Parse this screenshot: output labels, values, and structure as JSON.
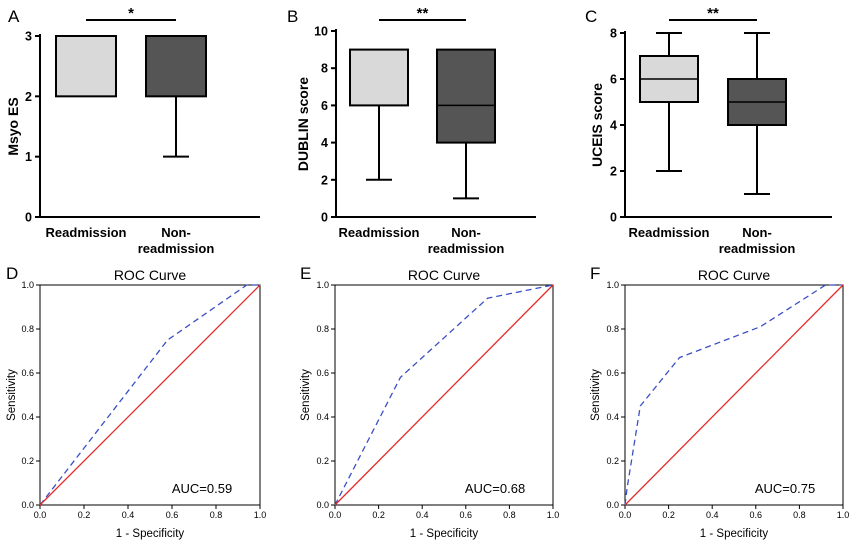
{
  "chart_data": [
    {
      "panel": "A",
      "type": "box",
      "ylabel": "Msyo ES",
      "ylim": [
        0,
        3
      ],
      "yticks": [
        "0",
        "1",
        "2",
        "3"
      ],
      "categories": [
        "Readmission",
        "Non-readmission"
      ],
      "category_lines": [
        [
          "Readmission"
        ],
        [
          "Non-",
          "readmission"
        ]
      ],
      "boxes": [
        {
          "min": 2,
          "q1": 2,
          "median": 3,
          "q3": 3,
          "max": 3,
          "fill": "#d9d9d9"
        },
        {
          "min": 1,
          "q1": 2,
          "median": 3,
          "q3": 3,
          "max": 3,
          "fill": "#555555"
        }
      ],
      "significance": "*"
    },
    {
      "panel": "B",
      "type": "box",
      "ylabel": "DUBLIN score",
      "ylim": [
        0,
        10
      ],
      "yticks": [
        "0",
        "2",
        "4",
        "6",
        "8",
        "10"
      ],
      "categories": [
        "Readmission",
        "Non-readmission"
      ],
      "category_lines": [
        [
          "Readmission"
        ],
        [
          "Non-",
          "readmission"
        ]
      ],
      "boxes": [
        {
          "min": 2,
          "q1": 6,
          "median": 9,
          "q3": 9,
          "max": 9,
          "fill": "#d9d9d9"
        },
        {
          "min": 1,
          "q1": 4,
          "median": 6,
          "q3": 9,
          "max": 9,
          "fill": "#555555"
        }
      ],
      "significance": "**"
    },
    {
      "panel": "C",
      "type": "box",
      "ylabel": "UCEIS score",
      "ylim": [
        0,
        8
      ],
      "yticks": [
        "0",
        "2",
        "4",
        "6",
        "8"
      ],
      "categories": [
        "Readmission",
        "Non-readmission"
      ],
      "category_lines": [
        [
          "Readmission"
        ],
        [
          "Non-",
          "readmission"
        ]
      ],
      "boxes": [
        {
          "min": 2,
          "q1": 5,
          "median": 6,
          "q3": 7,
          "max": 8,
          "fill": "#d9d9d9"
        },
        {
          "min": 1,
          "q1": 4,
          "median": 5,
          "q3": 6,
          "max": 8,
          "fill": "#555555"
        }
      ],
      "significance": "**"
    },
    {
      "panel": "D",
      "type": "line",
      "title": "ROC Curve",
      "xlabel": "1 - Specificity",
      "ylabel": "Sensitivity",
      "xlim": [
        0,
        1
      ],
      "ylim": [
        0,
        1
      ],
      "ticks": [
        "0.0",
        "0.2",
        "0.4",
        "0.6",
        "0.8",
        "1.0"
      ],
      "series": [
        {
          "style": "dashed",
          "color": "#3b4fc4",
          "x": [
            0,
            0.58,
            0.94,
            1.0
          ],
          "y": [
            0,
            0.75,
            1.0,
            1.0
          ]
        },
        {
          "style": "solid",
          "color": "#e52b2b",
          "x": [
            0,
            1
          ],
          "y": [
            0,
            1
          ]
        }
      ],
      "annotation": "AUC=0.59"
    },
    {
      "panel": "E",
      "type": "line",
      "title": "ROC Curve",
      "xlabel": "1 - Specificity",
      "ylabel": "Sensitivity",
      "xlim": [
        0,
        1
      ],
      "ylim": [
        0,
        1
      ],
      "ticks": [
        "0.0",
        "0.2",
        "0.4",
        "0.6",
        "0.8",
        "1.0"
      ],
      "series": [
        {
          "style": "dashed",
          "color": "#3b4fc4",
          "x": [
            0,
            0.3,
            0.7,
            1.0
          ],
          "y": [
            0,
            0.58,
            0.94,
            1.0
          ]
        },
        {
          "style": "solid",
          "color": "#e52b2b",
          "x": [
            0,
            1
          ],
          "y": [
            0,
            1
          ]
        }
      ],
      "annotation": "AUC=0.68"
    },
    {
      "panel": "F",
      "type": "line",
      "title": "ROC Curve",
      "xlabel": "1 - Specificity",
      "ylabel": "Sensitivity",
      "xlim": [
        0,
        1
      ],
      "ylim": [
        0,
        1
      ],
      "ticks": [
        "0.0",
        "0.2",
        "0.4",
        "0.6",
        "0.8",
        "1.0"
      ],
      "series": [
        {
          "style": "dashed",
          "color": "#3b4fc4",
          "x": [
            0,
            0.01,
            0.07,
            0.25,
            0.62,
            0.92,
            1.0
          ],
          "y": [
            0,
            0.08,
            0.45,
            0.67,
            0.81,
            1.0,
            1.0
          ]
        },
        {
          "style": "solid",
          "color": "#e52b2b",
          "x": [
            0,
            1
          ],
          "y": [
            0,
            1
          ]
        }
      ],
      "annotation": "AUC=0.75"
    }
  ]
}
